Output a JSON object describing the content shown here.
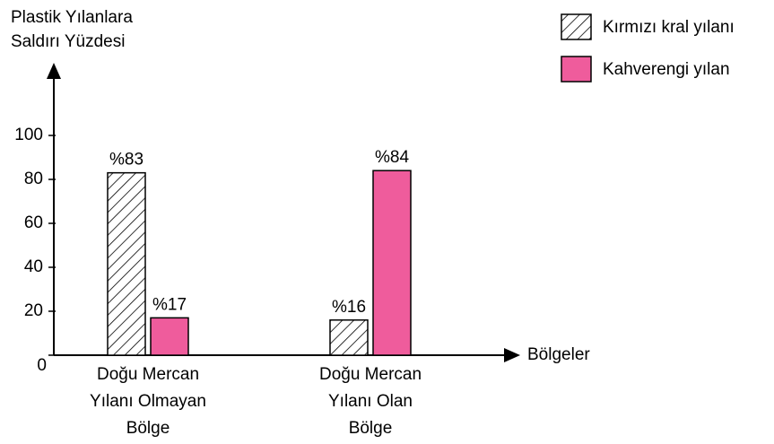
{
  "chart_data": {
    "type": "bar",
    "y_label": [
      "Plastik Yılanlara",
      "Saldırı Yüzdesi"
    ],
    "x_label": "Bölgeler",
    "categories": [
      [
        "Doğu Mercan",
        "Yılanı Olmayan",
        "Bölge"
      ],
      [
        "Doğu Mercan",
        "Yılanı Olan",
        "Bölge"
      ]
    ],
    "series": [
      {
        "name": "Kırmızı kral yılanı",
        "color": "#ffffff",
        "hatch": true,
        "values": [
          83,
          16
        ],
        "value_labels": [
          "%83",
          "%16"
        ]
      },
      {
        "name": "Kahverengi yılan",
        "color": "#ef5c9c",
        "hatch": false,
        "values": [
          17,
          84
        ],
        "value_labels": [
          "%17",
          "%84"
        ]
      }
    ],
    "ylim": [
      0,
      100
    ],
    "yticks": [
      0,
      20,
      40,
      60,
      80,
      100
    ],
    "legend": "top-right"
  }
}
